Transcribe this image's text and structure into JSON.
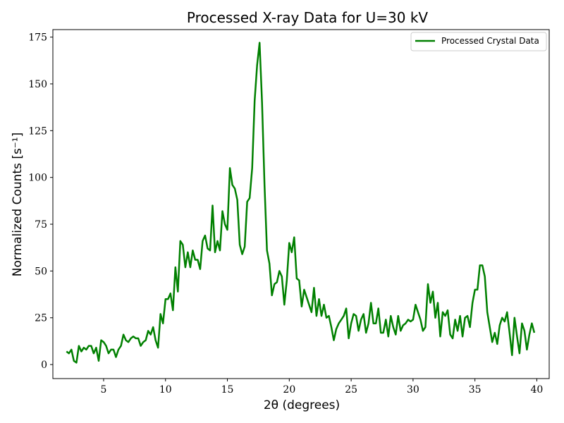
{
  "chart_data": {
    "type": "line",
    "title": "Processed X-ray Data for U=30 kV",
    "xlabel": "2θ (degrees)",
    "ylabel": "Normalized Counts [s⁻¹]",
    "xlim": [
      0.9,
      41.0
    ],
    "ylim": [
      -7.5,
      179
    ],
    "xticks": [
      5,
      10,
      15,
      20,
      25,
      30,
      35,
      40
    ],
    "yticks": [
      0,
      25,
      50,
      75,
      100,
      125,
      150,
      175
    ],
    "grid": false,
    "legend_position": "top-right",
    "series": [
      {
        "name": "Processed Crystal Data",
        "color": "#008000",
        "x": [
          2.0,
          2.2,
          2.4,
          2.6,
          2.8,
          3.0,
          3.2,
          3.4,
          3.6,
          3.8,
          4.0,
          4.2,
          4.4,
          4.6,
          4.8,
          5.0,
          5.2,
          5.4,
          5.6,
          5.8,
          6.0,
          6.2,
          6.4,
          6.6,
          6.8,
          7.0,
          7.2,
          7.4,
          7.6,
          7.8,
          8.0,
          8.2,
          8.4,
          8.6,
          8.8,
          9.0,
          9.2,
          9.4,
          9.6,
          9.8,
          10.0,
          10.2,
          10.4,
          10.6,
          10.8,
          11.0,
          11.2,
          11.4,
          11.6,
          11.8,
          12.0,
          12.2,
          12.4,
          12.6,
          12.8,
          13.0,
          13.2,
          13.4,
          13.6,
          13.8,
          14.0,
          14.2,
          14.4,
          14.6,
          14.8,
          15.0,
          15.2,
          15.4,
          15.6,
          15.8,
          16.0,
          16.2,
          16.4,
          16.6,
          16.8,
          17.0,
          17.2,
          17.4,
          17.6,
          17.8,
          18.0,
          18.2,
          18.4,
          18.6,
          18.8,
          19.0,
          19.2,
          19.4,
          19.6,
          19.8,
          20.0,
          20.2,
          20.4,
          20.6,
          20.8,
          21.0,
          21.2,
          21.4,
          21.6,
          21.8,
          22.0,
          22.2,
          22.4,
          22.6,
          22.8,
          23.0,
          23.2,
          23.4,
          23.6,
          23.8,
          24.0,
          24.2,
          24.4,
          24.6,
          24.8,
          25.0,
          25.2,
          25.4,
          25.6,
          25.8,
          26.0,
          26.2,
          26.4,
          26.6,
          26.8,
          27.0,
          27.2,
          27.4,
          27.6,
          27.8,
          28.0,
          28.2,
          28.4,
          28.6,
          28.8,
          29.0,
          29.2,
          29.4,
          29.6,
          29.8,
          30.0,
          30.2,
          30.4,
          30.6,
          30.8,
          31.0,
          31.2,
          31.4,
          31.6,
          31.8,
          32.0,
          32.2,
          32.4,
          32.6,
          32.8,
          33.0,
          33.2,
          33.4,
          33.6,
          33.8,
          34.0,
          34.2,
          34.4,
          34.6,
          34.8,
          35.0,
          35.2,
          35.4,
          35.6,
          35.8,
          36.0,
          36.2,
          36.4,
          36.6,
          36.8,
          37.0,
          37.2,
          37.4,
          37.6,
          37.8,
          38.0,
          38.2,
          38.4,
          38.6,
          38.8,
          39.0,
          39.2,
          39.4,
          39.6,
          39.8
        ],
        "values": [
          7,
          6,
          8,
          2,
          1,
          10,
          7,
          9,
          8,
          10,
          10,
          6,
          9,
          2,
          13,
          12,
          10,
          6,
          8,
          8,
          4,
          8,
          10,
          16,
          13,
          12,
          14,
          15,
          14,
          14,
          10,
          12,
          13,
          18,
          16,
          20,
          13,
          9,
          27,
          22,
          35,
          35,
          38,
          29,
          52,
          39,
          66,
          64,
          52,
          60,
          52,
          61,
          56,
          56,
          51,
          66,
          69,
          62,
          61,
          85,
          60,
          66,
          61,
          82,
          75,
          72,
          105,
          96,
          94,
          88,
          64,
          59,
          63,
          87,
          89,
          105,
          141,
          160,
          172,
          140,
          96,
          61,
          54,
          37,
          43,
          44,
          50,
          47,
          32,
          45,
          65,
          60,
          68,
          46,
          45,
          31,
          40,
          36,
          32,
          28,
          41,
          26,
          35,
          26,
          32,
          25,
          26,
          20,
          13,
          19,
          22,
          24,
          26,
          30,
          14,
          22,
          27,
          26,
          18,
          24,
          27,
          17,
          22,
          33,
          22,
          22,
          30,
          17,
          17,
          24,
          15,
          26,
          20,
          16,
          26,
          18,
          21,
          22,
          24,
          23,
          24,
          32,
          28,
          24,
          18,
          20,
          43,
          33,
          39,
          25,
          33,
          15,
          28,
          26,
          29,
          16,
          14,
          24,
          18,
          26,
          15,
          25,
          26,
          20,
          33,
          40,
          40,
          53,
          53,
          47,
          28,
          20,
          12,
          17,
          11,
          21,
          25,
          23,
          28,
          17,
          5,
          25,
          15,
          6,
          22,
          18,
          8,
          16,
          22,
          17
        ]
      }
    ]
  }
}
